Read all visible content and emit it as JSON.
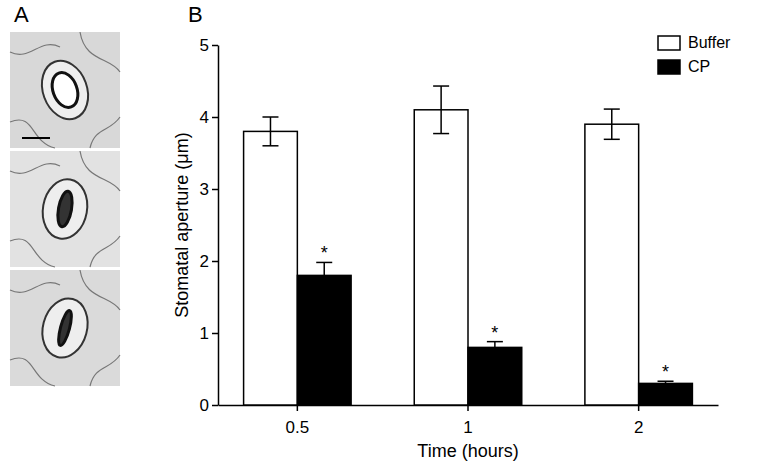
{
  "chart_data": {
    "type": "bar",
    "panel_labels": [
      "A",
      "B"
    ],
    "x_label": "Time (hours)",
    "y_label": "Stomatal aperture (μm)",
    "categories": [
      "0.5",
      "1",
      "2"
    ],
    "series": [
      {
        "name": "Buffer",
        "color": "#ffffff",
        "values": [
          3.8,
          4.1,
          3.9
        ],
        "errors": [
          0.2,
          0.33,
          0.21
        ]
      },
      {
        "name": "CP",
        "color": "#000000",
        "values": [
          1.8,
          0.8,
          0.3
        ],
        "errors": [
          0.18,
          0.08,
          0.03
        ],
        "significance": [
          "*",
          "*",
          "*"
        ]
      }
    ],
    "ylim": [
      0,
      5
    ],
    "yticks": [
      0,
      1,
      2,
      3,
      4,
      5
    ],
    "legend": "upper right"
  }
}
